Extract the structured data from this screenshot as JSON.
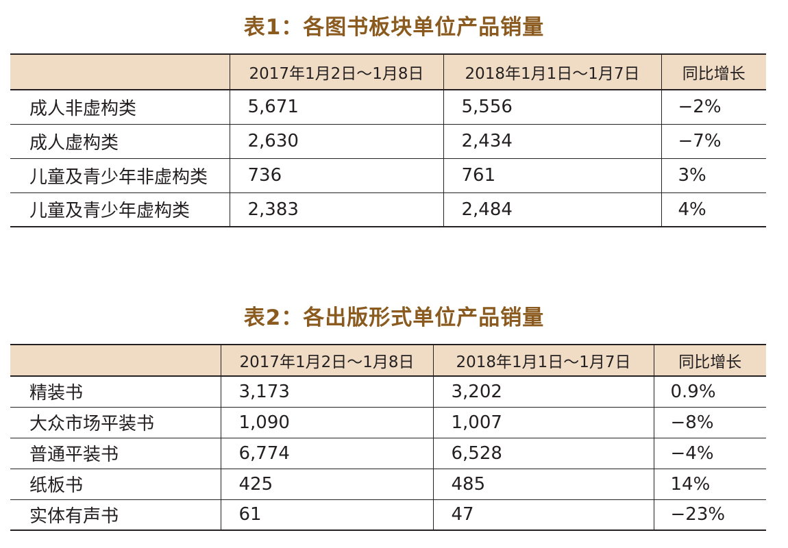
{
  "table1": {
    "title": "表1：各图书板块单位产品销量",
    "headers": [
      "",
      "2017年1月2日～1月8日",
      "2018年1月1日～1月7日",
      "同比增长"
    ],
    "rows": [
      {
        "label": "成人非虚构类",
        "v2017": "5,671",
        "v2018": "5,556",
        "change": "−2%"
      },
      {
        "label": "成人虚构类",
        "v2017": "2,630",
        "v2018": "2,434",
        "change": "−7%"
      },
      {
        "label": "儿童及青少年非虚构类",
        "v2017": "736",
        "v2018": "761",
        "change": "3%"
      },
      {
        "label": "儿童及青少年虚构类",
        "v2017": "2,383",
        "v2018": "2,484",
        "change": "4%"
      }
    ]
  },
  "table2": {
    "title": "表2：各出版形式单位产品销量",
    "headers": [
      "",
      "2017年1月2日～1月8日",
      "2018年1月1日～1月7日",
      "同比增长"
    ],
    "rows": [
      {
        "label": "精装书",
        "v2017": "3,173",
        "v2018": "3,202",
        "change": "0.9%"
      },
      {
        "label": "大众市场平装书",
        "v2017": "1,090",
        "v2018": "1,007",
        "change": "−8%"
      },
      {
        "label": "普通平装书",
        "v2017": "6,774",
        "v2018": "6,528",
        "change": "−4%"
      },
      {
        "label": "纸板书",
        "v2017": "425",
        "v2018": "485",
        "change": "14%"
      },
      {
        "label": "实体有声书",
        "v2017": "61",
        "v2018": "47",
        "change": "−23%"
      }
    ]
  },
  "colors": {
    "title": "#8a5a1f",
    "header_bg": "#f0dcc4",
    "rule": "#231f20"
  }
}
